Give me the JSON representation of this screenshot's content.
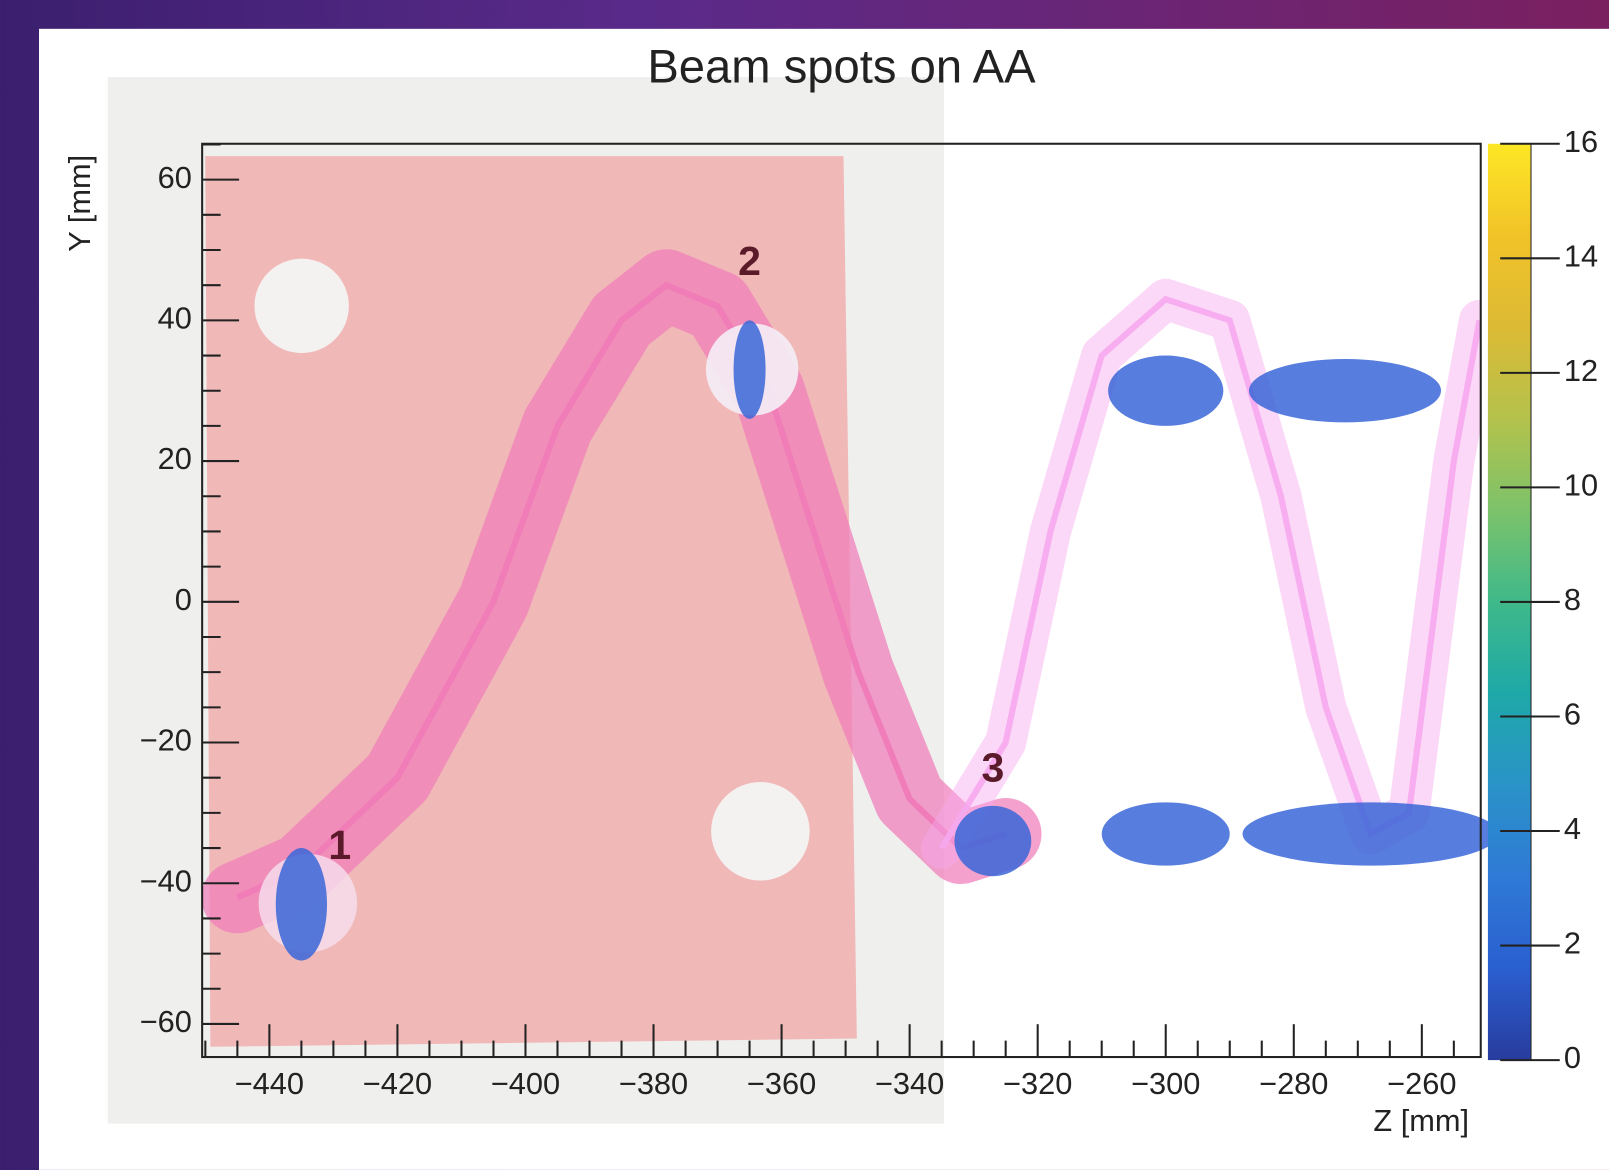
{
  "chart_data": {
    "type": "scatter",
    "title": "Beam spots on AA",
    "xlabel": "Z [mm]",
    "ylabel": "Y [mm]",
    "xlim": [
      -450.5,
      -250.8
    ],
    "ylim": [
      -64.7,
      65.1
    ],
    "xticks": [
      {
        "value": -440,
        "label": "−440"
      },
      {
        "value": -420,
        "label": "−420"
      },
      {
        "value": -400,
        "label": "−400"
      },
      {
        "value": -380,
        "label": "−380"
      },
      {
        "value": -360,
        "label": "−360"
      },
      {
        "value": -340,
        "label": "−340"
      },
      {
        "value": -320,
        "label": "−320"
      },
      {
        "value": -300,
        "label": "−300"
      },
      {
        "value": -280,
        "label": "−280"
      },
      {
        "value": -260,
        "label": "−260"
      }
    ],
    "yticks": [
      {
        "value": -60,
        "label": "−60"
      },
      {
        "value": -40,
        "label": "−40"
      },
      {
        "value": -20,
        "label": "−20"
      },
      0,
      20,
      40,
      60
    ],
    "zlim": [
      0,
      16
    ],
    "zticks": [
      0,
      2,
      4,
      6,
      8,
      10,
      12,
      14,
      16
    ],
    "colorscale": [
      "#283c9e",
      "#2a5fd0",
      "#2f7ad6",
      "#2a93c8",
      "#1ea9a8",
      "#3fb98a",
      "#7cc26a",
      "#b4c24c",
      "#dcba34",
      "#f2c328",
      "#fde725"
    ],
    "spots": {
      "color": "#3a66d8",
      "x": [
        -435,
        -365,
        -327,
        -300,
        -272,
        -300,
        -268
      ],
      "y": [
        -43,
        33,
        -34,
        30,
        30,
        -33,
        -33
      ],
      "xwidth": [
        8,
        5,
        12,
        18,
        30,
        20,
        40
      ],
      "ywidth": [
        16,
        14,
        10,
        10,
        9,
        9,
        9
      ]
    },
    "trajectories": [
      {
        "color": "#f07ab8",
        "x": [
          -445,
          -435,
          -420,
          -405,
          -395,
          -385,
          -378,
          -370,
          -362,
          -355,
          -348,
          -340,
          -332,
          -325
        ],
        "values": [
          -42,
          -38,
          -25,
          0,
          25,
          40,
          45,
          42,
          30,
          10,
          -10,
          -28,
          -35,
          -33
        ]
      },
      {
        "color": "#f6a8ee",
        "x": [
          -335,
          -325,
          -318,
          -310,
          -300,
          -290,
          -282,
          -275,
          -268,
          -262,
          -255,
          -251
        ],
        "values": [
          -35,
          -20,
          10,
          35,
          43,
          40,
          15,
          -15,
          -33,
          -30,
          20,
          40
        ]
      }
    ],
    "annotations": [
      {
        "text": "1",
        "x": -429,
        "y": -35
      },
      {
        "text": "2",
        "x": -365,
        "y": 48
      },
      {
        "text": "3",
        "x": -327,
        "y": -24
      }
    ]
  }
}
